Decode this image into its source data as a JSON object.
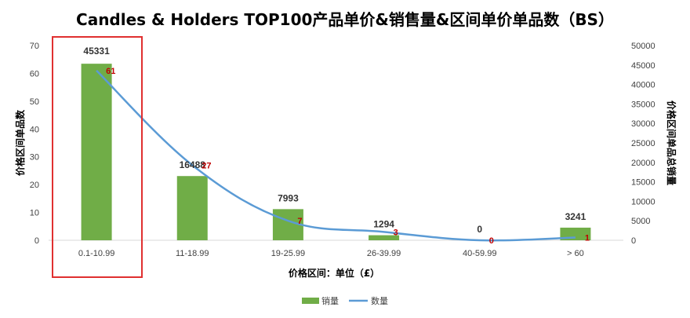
{
  "chart_data": {
    "type": "bar",
    "title": "Candles & Holders TOP100产品单价&销售量&区间单价单品数（BS）",
    "xlabel": "价格区间：单位（£）",
    "ylabel_left": "价格区间单品数",
    "ylabel_right": "价格区间单品总销量",
    "categories": [
      "0.1-10.99",
      "11-18.99",
      "19-25.99",
      "26-39.99",
      "40-59.99",
      "> 60"
    ],
    "series": [
      {
        "name": "销量",
        "type": "bar",
        "axis": "right",
        "color": "#70AD47",
        "values": [
          45331,
          16488,
          7993,
          1294,
          0,
          3241
        ]
      },
      {
        "name": "数量",
        "type": "line",
        "axis": "left",
        "color": "#5B9BD5",
        "label_color": "#C00000",
        "values": [
          61,
          27,
          7,
          3,
          0,
          1
        ]
      }
    ],
    "ylim_left": [
      0,
      70
    ],
    "yticks_left": [
      0,
      10,
      20,
      30,
      40,
      50,
      60,
      70
    ],
    "ylim_right": [
      0,
      50000
    ],
    "yticks_right": [
      0,
      5000,
      10000,
      15000,
      20000,
      25000,
      30000,
      35000,
      40000,
      45000,
      50000
    ],
    "grid": false,
    "legend_position": "bottom",
    "highlight_box": {
      "category_index": 0,
      "color": "#E03030"
    }
  }
}
